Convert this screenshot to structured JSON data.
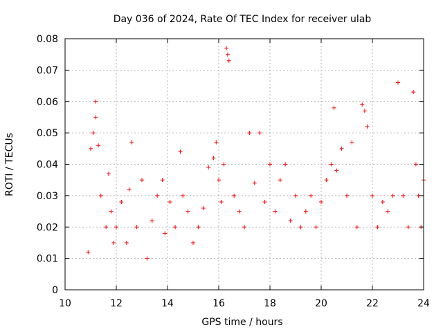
{
  "chart_data": {
    "type": "scatter",
    "title": "Day 036 of 2024, Rate Of TEC Index for receiver ulab",
    "xlabel": "GPS time / hours",
    "ylabel": "ROTI / TECUs",
    "xlim": [
      10,
      24
    ],
    "ylim": [
      0,
      0.08
    ],
    "x_ticks": [
      "10",
      "12",
      "14",
      "16",
      "18",
      "20",
      "22",
      "24"
    ],
    "y_ticks": [
      "0",
      "0.01",
      "0.02",
      "0.03",
      "0.04",
      "0.05",
      "0.06",
      "0.07",
      "0.08"
    ],
    "grid": true,
    "marker": "plus",
    "color": "#ff0000",
    "series": [
      {
        "name": "ROTI",
        "x": [
          10.9,
          11.0,
          11.1,
          11.2,
          11.2,
          11.3,
          11.4,
          11.6,
          11.7,
          11.8,
          11.9,
          12.0,
          12.2,
          12.4,
          12.5,
          12.6,
          12.8,
          13.0,
          13.2,
          13.4,
          13.6,
          13.8,
          13.9,
          14.1,
          14.3,
          14.5,
          14.6,
          14.8,
          15.0,
          15.2,
          15.4,
          15.6,
          15.8,
          15.9,
          16.0,
          16.1,
          16.2,
          16.3,
          16.35,
          16.4,
          16.6,
          16.8,
          17.0,
          17.2,
          17.4,
          17.6,
          17.8,
          18.0,
          18.2,
          18.4,
          18.6,
          18.8,
          19.0,
          19.2,
          19.4,
          19.6,
          19.8,
          20.0,
          20.2,
          20.4,
          20.5,
          20.6,
          20.8,
          21.0,
          21.2,
          21.4,
          21.6,
          21.7,
          21.8,
          22.0,
          22.2,
          22.4,
          22.6,
          22.8,
          23.0,
          23.2,
          23.4,
          23.6,
          23.7,
          23.8,
          23.9,
          24.0
        ],
        "values": [
          0.012,
          0.045,
          0.05,
          0.06,
          0.055,
          0.046,
          0.03,
          0.02,
          0.037,
          0.025,
          0.015,
          0.02,
          0.028,
          0.015,
          0.032,
          0.047,
          0.02,
          0.035,
          0.01,
          0.022,
          0.03,
          0.035,
          0.018,
          0.028,
          0.02,
          0.044,
          0.03,
          0.025,
          0.015,
          0.02,
          0.026,
          0.039,
          0.042,
          0.047,
          0.035,
          0.028,
          0.04,
          0.077,
          0.075,
          0.073,
          0.03,
          0.025,
          0.02,
          0.05,
          0.034,
          0.05,
          0.028,
          0.04,
          0.025,
          0.035,
          0.04,
          0.022,
          0.03,
          0.02,
          0.025,
          0.03,
          0.02,
          0.028,
          0.035,
          0.04,
          0.058,
          0.038,
          0.045,
          0.03,
          0.047,
          0.02,
          0.059,
          0.057,
          0.052,
          0.03,
          0.02,
          0.028,
          0.025,
          0.03,
          0.066,
          0.03,
          0.02,
          0.063,
          0.04,
          0.03,
          0.02,
          0.035
        ]
      }
    ]
  }
}
